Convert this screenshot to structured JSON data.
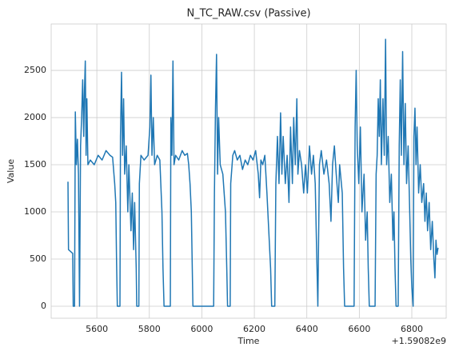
{
  "chart_data": {
    "type": "line",
    "title": "N_TC_RAW.csv (Passive)",
    "xlabel": "Time",
    "ylabel": "Value",
    "x_offset": "+1.59082e9",
    "x": [
      5490,
      5492,
      5500,
      5508,
      5510,
      5515,
      5518,
      5522,
      5526,
      5530,
      5534,
      5538,
      5542,
      5546,
      5550,
      5553,
      5556,
      5559,
      5562,
      5566,
      5575,
      5590,
      5605,
      5620,
      5635,
      5650,
      5660,
      5668,
      5672,
      5675,
      5678,
      5688,
      5690,
      5694,
      5698,
      5702,
      5706,
      5712,
      5718,
      5722,
      5730,
      5735,
      5740,
      5744,
      5750,
      5752,
      5760,
      5762,
      5768,
      5780,
      5795,
      5802,
      5806,
      5810,
      5815,
      5820,
      5830,
      5840,
      5848,
      5852,
      5856,
      5880,
      5882,
      5886,
      5890,
      5894,
      5900,
      5912,
      5925,
      5935,
      5945,
      5950,
      5955,
      5960,
      5963,
      5966,
      6045,
      6048,
      6052,
      6056,
      6060,
      6064,
      6070,
      6080,
      6090,
      6095,
      6098,
      6108,
      6110,
      6118,
      6125,
      6135,
      6145,
      6155,
      6165,
      6175,
      6185,
      6195,
      6205,
      6215,
      6220,
      6225,
      6232,
      6240,
      6248,
      6255,
      6262,
      6266,
      6278,
      6282,
      6288,
      6294,
      6300,
      6305,
      6310,
      6318,
      6325,
      6332,
      6338,
      6345,
      6350,
      6356,
      6362,
      6366,
      6372,
      6380,
      6388,
      6395,
      6402,
      6410,
      6418,
      6425,
      6432,
      6438,
      6442,
      6448,
      6455,
      6465,
      6475,
      6485,
      6492,
      6498,
      6505,
      6512,
      6520,
      6525,
      6535,
      6540,
      6544,
      6580,
      6584,
      6588,
      6592,
      6598,
      6604,
      6610,
      6618,
      6624,
      6630,
      6634,
      6638,
      6660,
      6664,
      6668,
      6672,
      6676,
      6680,
      6684,
      6690,
      6695,
      6700,
      6704,
      6710,
      6716,
      6722,
      6728,
      6732,
      6736,
      6740,
      6748,
      6752,
      6756,
      6760,
      6765,
      6770,
      6775,
      6780,
      6786,
      6792,
      6796,
      6800,
      6805,
      6808,
      6812,
      6816,
      6820,
      6826,
      6832,
      6838,
      6845,
      6850,
      6855,
      6860,
      6866,
      6872,
      6878,
      6884,
      6888,
      6892,
      6896,
      6900
    ],
    "values": [
      1320,
      600,
      580,
      560,
      0,
      0,
      2060,
      1500,
      1770,
      1400,
      0,
      1700,
      2000,
      2400,
      1800,
      2300,
      2600,
      1600,
      2200,
      1500,
      1550,
      1500,
      1600,
      1550,
      1650,
      1600,
      1580,
      1300,
      1100,
      500,
      0,
      0,
      1800,
      2480,
      1600,
      2200,
      1400,
      1700,
      1000,
      1500,
      800,
      1200,
      600,
      1100,
      400,
      0,
      0,
      1300,
      1600,
      1550,
      1600,
      1900,
      2450,
      1600,
      2000,
      1500,
      1600,
      1550,
      1000,
      400,
      0,
      0,
      2000,
      1600,
      2600,
      1500,
      1600,
      1550,
      1650,
      1600,
      1620,
      1500,
      1300,
      1000,
      500,
      0,
      0,
      1200,
      2100,
      2670,
      1400,
      2000,
      1500,
      1400,
      1000,
      400,
      0,
      0,
      1300,
      1600,
      1650,
      1550,
      1600,
      1450,
      1550,
      1500,
      1600,
      1550,
      1650,
      1400,
      1150,
      1550,
      1500,
      1600,
      1200,
      800,
      400,
      0,
      0,
      1300,
      1800,
      1300,
      2050,
      1400,
      1800,
      1300,
      1600,
      1100,
      1900,
      1300,
      2000,
      1500,
      2200,
      1400,
      1650,
      1500,
      1200,
      1500,
      1200,
      1700,
      1400,
      1600,
      1300,
      500,
      0,
      1500,
      1650,
      1400,
      1550,
      1300,
      900,
      1500,
      1700,
      1400,
      1100,
      1500,
      1200,
      400,
      0,
      0,
      1900,
      2500,
      1700,
      1300,
      1900,
      1000,
      1400,
      700,
      1000,
      400,
      0,
      0,
      1400,
      1600,
      2200,
      1800,
      2400,
      1500,
      2200,
      1600,
      2830,
      1500,
      1800,
      1100,
      1400,
      700,
      1000,
      400,
      0,
      0,
      1700,
      2400,
      1600,
      2700,
      1500,
      2150,
      1300,
      1700,
      1000,
      500,
      200,
      0,
      1800,
      2100,
      1500,
      1900,
      1200,
      1500,
      1100,
      1300,
      900,
      1200,
      800,
      1100,
      600,
      900,
      500,
      300,
      700,
      550,
      620
    ],
    "color": "#1f77b4",
    "xlim": [
      5426,
      6931
    ],
    "ylim": [
      -127,
      2992
    ],
    "xticks": [
      5600,
      5800,
      6000,
      6200,
      6400,
      6600,
      6800
    ],
    "yticks": [
      0,
      500,
      1000,
      1500,
      2000,
      2500
    ],
    "grid": true
  }
}
